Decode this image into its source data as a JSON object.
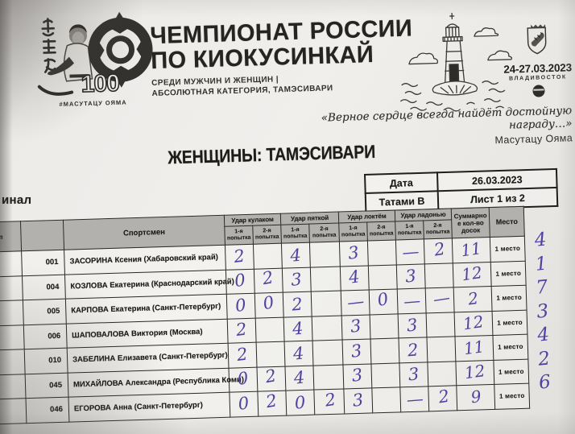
{
  "colors": {
    "ink": "#4f42a0",
    "header_fill": "#b3b1ae",
    "paper": "#edebe8"
  },
  "letterhead": {
    "logo": {
      "anniversary": "100",
      "hashtag": "#МАСУТАЦУ ОЯМА"
    },
    "title_line1": "ЧЕМПИОНАТ РОССИИ",
    "title_line2": "ПО КИОКУСИНКАЙ",
    "subtitle_line1": "СРЕДИ МУЖЧИН И ЖЕНЩИН |",
    "subtitle_line2": "АБСОЛЮТНАЯ КАТЕГОРИЯ, ТАМЭСИВАРИ",
    "dates": "24-27.03.2023",
    "city": "ВЛАДИВОСТОК",
    "quote": "«Верное сердце всегда найдёт достойную награду…»",
    "quote_author": "Масутацу Ояма"
  },
  "section_title": "ЖЕНЩИНЫ: ТАМЭСИВАРИ",
  "stage_label": "инал",
  "info_table": {
    "date_label": "Дата",
    "date_value": "26.03.2023",
    "tatami_label": "Татами В",
    "sheet_label": "Лист 1 из 2"
  },
  "results_table": {
    "col_pp": "п/п",
    "col_athlete": "Спортсмен",
    "strike_groups": [
      "Удар кулаком",
      "Удар пяткой",
      "Удар локтём",
      "Удар ладонью"
    ],
    "attempt_first": "1-я",
    "attempt_second": "2-я",
    "attempt_word": "попытка",
    "col_total_lines": [
      "Суммарно",
      "е кол-во",
      "досок"
    ],
    "col_place": "Место",
    "place_stamp": "1 место",
    "rows": [
      {
        "id": "001",
        "name": "ЗАСОРИНА Ксения (Хабаровский край)",
        "scores": [
          "2",
          "",
          "4",
          "",
          "3",
          "",
          "—",
          "2"
        ],
        "total": "11",
        "place": "4"
      },
      {
        "id": "004",
        "name": "КОЗЛОВА Екатерина (Краснодарский край)",
        "scores": [
          "0",
          "2",
          "3",
          "",
          "4",
          "",
          "3",
          ""
        ],
        "total": "12",
        "place": "1"
      },
      {
        "id": "005",
        "name": "КАРПОВА Екатерина (Санкт-Петербург)",
        "scores": [
          "0",
          "0",
          "2",
          "",
          "—",
          "0",
          "—",
          "—"
        ],
        "total": "2",
        "place": "7"
      },
      {
        "id": "006",
        "name": "ШАПОВАЛОВА Виктория (Москва)",
        "scores": [
          "2",
          "",
          "4",
          "",
          "3",
          "",
          "3",
          ""
        ],
        "total": "12",
        "place": "3"
      },
      {
        "id": "010",
        "name": "ЗАБЕЛИНА Елизавета (Санкт-Петербург)",
        "scores": [
          "2",
          "",
          "4",
          "",
          "3",
          "",
          "2",
          ""
        ],
        "total": "11",
        "place": "4"
      },
      {
        "id": "045",
        "name": "МИХАЙЛОВА Александра (Республика Коми)",
        "scores": [
          "0",
          "2",
          "4",
          "",
          "3",
          "",
          "3",
          ""
        ],
        "total": "12",
        "place": "2"
      },
      {
        "id": "046",
        "name": "ЕГОРОВА Анна (Санкт-Петербург)",
        "scores": [
          "0",
          "2",
          "0",
          "2",
          "3",
          "",
          "—",
          "2"
        ],
        "total": "9",
        "place": "6"
      }
    ]
  }
}
